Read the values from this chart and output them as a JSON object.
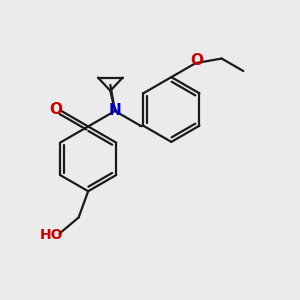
{
  "background_color": "#ebebeb",
  "bond_color": "#1a1a1a",
  "oxygen_color": "#cc0000",
  "nitrogen_color": "#0000cc",
  "line_width": 1.6,
  "figsize": [
    3.0,
    3.0
  ],
  "dpi": 100,
  "xlim": [
    0,
    10
  ],
  "ylim": [
    0,
    10
  ]
}
